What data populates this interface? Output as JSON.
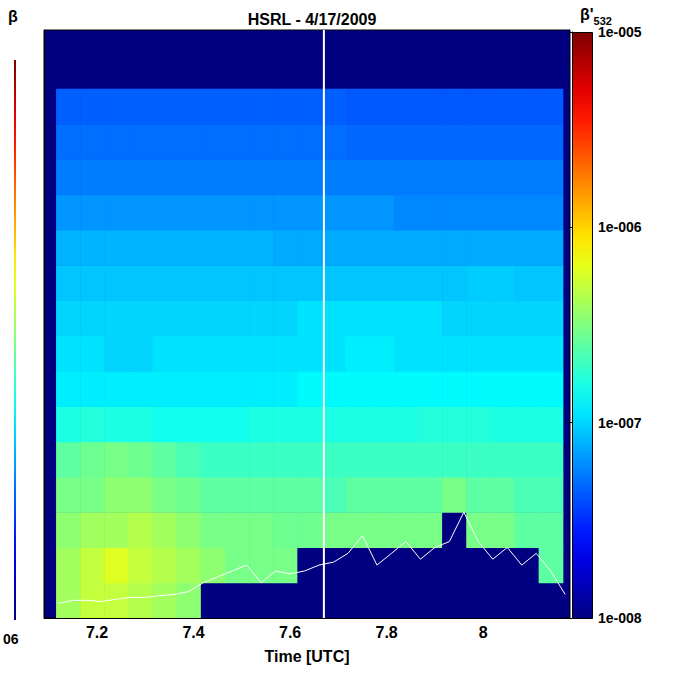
{
  "chart_data": {
    "type": "heatmap",
    "title": "HSRL - 4/17/2009",
    "x_label": "Time [UTC]",
    "xlim": [
      7.09,
      8.18
    ],
    "xticks": [
      7.2,
      7.4,
      7.6,
      7.8,
      8
    ],
    "ylim": [
      0,
      100
    ],
    "yticks": [],
    "tick_labels": "x",
    "grid": false,
    "x": [
      7.14,
      7.19,
      7.24,
      7.29,
      7.34,
      7.39,
      7.44,
      7.49,
      7.54,
      7.59,
      7.64,
      7.69,
      7.74,
      7.79,
      7.84,
      7.89,
      7.94,
      7.99,
      8.04,
      8.09,
      8.14
    ],
    "y": [
      3,
      9,
      15,
      21,
      27,
      33,
      39,
      45,
      51,
      57,
      63,
      69,
      75,
      81,
      87
    ],
    "cells": [
      [
        4e-07,
        5e-07,
        5e-07,
        4.5e-07,
        4e-07,
        3.5e-07,
        1e-08,
        1e-08,
        1e-08,
        1e-08,
        1e-08,
        1e-08,
        1e-08,
        1e-08,
        1e-08,
        1e-08,
        1e-08,
        1e-08,
        1e-08,
        1e-08,
        1e-08
      ],
      [
        4e-07,
        5e-07,
        6e-07,
        5e-07,
        4.5e-07,
        4e-07,
        3.5e-07,
        3e-07,
        3e-07,
        3e-07,
        1e-08,
        1e-08,
        1e-08,
        1e-08,
        1e-08,
        1e-08,
        1e-08,
        1e-08,
        1e-08,
        1e-08,
        2.5e-07
      ],
      [
        3.5e-07,
        4e-07,
        4e-07,
        4.5e-07,
        4e-07,
        3.5e-07,
        3e-07,
        3e-07,
        3e-07,
        2.8e-07,
        2.8e-07,
        3e-07,
        3e-07,
        3e-07,
        3e-07,
        3e-07,
        1e-08,
        3e-07,
        3e-07,
        2.5e-07,
        2.5e-07
      ],
      [
        3e-07,
        3e-07,
        3.5e-07,
        3.5e-07,
        3e-07,
        2.8e-07,
        2.5e-07,
        2.5e-07,
        2.5e-07,
        2.5e-07,
        2.5e-07,
        2.2e-07,
        2.5e-07,
        2.5e-07,
        2.5e-07,
        2.5e-07,
        3e-07,
        2.5e-07,
        2.5e-07,
        2.2e-07,
        2.2e-07
      ],
      [
        2.5e-07,
        2.8e-07,
        3e-07,
        2.8e-07,
        2.5e-07,
        2.2e-07,
        2e-07,
        2e-07,
        2e-07,
        2e-07,
        2e-07,
        2e-07,
        2e-07,
        2e-07,
        2e-07,
        2e-07,
        2e-07,
        2e-07,
        2e-07,
        2e-07,
        2e-07
      ],
      [
        1.6e-07,
        1.7e-07,
        1.6e-07,
        1.6e-07,
        1.5e-07,
        1.5e-07,
        1.5e-07,
        1.5e-07,
        1.6e-07,
        1.6e-07,
        1.6e-07,
        1.6e-07,
        1.6e-07,
        1.6e-07,
        1.6e-07,
        1.7e-07,
        1.7e-07,
        1.7e-07,
        1.6e-07,
        1.6e-07,
        1.6e-07
      ],
      [
        1.2e-07,
        1.2e-07,
        1.2e-07,
        1.2e-07,
        1.2e-07,
        1.2e-07,
        1.2e-07,
        1.2e-07,
        1.2e-07,
        1.2e-07,
        1.3e-07,
        1.3e-07,
        1.3e-07,
        1.3e-07,
        1.3e-07,
        1.3e-07,
        1.3e-07,
        1.3e-07,
        1.3e-07,
        1.3e-07,
        1.3e-07
      ],
      [
        1.1e-07,
        1.1e-07,
        1e-07,
        1e-07,
        1.1e-07,
        1.1e-07,
        1.1e-07,
        1.1e-07,
        1.1e-07,
        1.1e-07,
        1.1e-07,
        1.1e-07,
        1.2e-07,
        1.2e-07,
        1.1e-07,
        1.1e-07,
        1.1e-07,
        1.1e-07,
        1.1e-07,
        1.1e-07,
        1.1e-07
      ],
      [
        1e-07,
        1e-07,
        1e-07,
        1e-07,
        1e-07,
        1e-07,
        1e-07,
        1e-07,
        1e-07,
        1e-07,
        1.1e-07,
        1.1e-07,
        1.1e-07,
        1.1e-07,
        1.1e-07,
        1.1e-07,
        1e-07,
        1e-07,
        1e-07,
        1e-07,
        1e-07
      ],
      [
        9e-08,
        9e-08,
        9e-08,
        9e-08,
        9e-08,
        9e-08,
        9e-08,
        9e-08,
        9e-08,
        9e-08,
        9e-08,
        9e-08,
        9e-08,
        9e-08,
        9e-08,
        9e-08,
        9e-08,
        9.5e-08,
        9.5e-08,
        9e-08,
        9e-08
      ],
      [
        8e-08,
        8e-08,
        8e-08,
        8e-08,
        8e-08,
        8e-08,
        8e-08,
        8e-08,
        8e-08,
        7.5e-08,
        7.5e-08,
        7.5e-08,
        7.5e-08,
        7.5e-08,
        7.5e-08,
        7.5e-08,
        7.5e-08,
        7.5e-08,
        7.5e-08,
        7.5e-08,
        7.5e-08
      ],
      [
        6.5e-08,
        6.5e-08,
        6.5e-08,
        6.5e-08,
        6.5e-08,
        6.5e-08,
        6.5e-08,
        6.5e-08,
        6.5e-08,
        6.5e-08,
        6.5e-08,
        6.5e-08,
        6.5e-08,
        6.5e-08,
        6e-08,
        6e-08,
        6e-08,
        6e-08,
        6e-08,
        6e-08,
        6e-08
      ],
      [
        5.5e-08,
        5.5e-08,
        5.5e-08,
        5.5e-08,
        5.5e-08,
        5.5e-08,
        5.5e-08,
        5.5e-08,
        5.5e-08,
        5.5e-08,
        5.5e-08,
        5.5e-08,
        5.5e-08,
        5.5e-08,
        5.5e-08,
        5.5e-08,
        5.5e-08,
        5.5e-08,
        5.5e-08,
        5.5e-08,
        5.5e-08
      ],
      [
        5e-08,
        5e-08,
        5e-08,
        5e-08,
        5e-08,
        5e-08,
        5e-08,
        5e-08,
        5e-08,
        5e-08,
        5e-08,
        5e-08,
        4.8e-08,
        4.8e-08,
        4.8e-08,
        4.8e-08,
        4.8e-08,
        4.8e-08,
        4.8e-08,
        4.8e-08,
        4.8e-08
      ],
      [
        4.5e-08,
        4.5e-08,
        4.5e-08,
        4.5e-08,
        4.5e-08,
        4.5e-08,
        4.5e-08,
        4.5e-08,
        4.5e-08,
        4.5e-08,
        4.5e-08,
        4.5e-08,
        4.3e-08,
        4.3e-08,
        4.3e-08,
        4.3e-08,
        4.3e-08,
        4.3e-08,
        4.3e-08,
        4.3e-08,
        4.3e-08
      ]
    ],
    "colorbar": {
      "label": {
        "text": "β'",
        "subscript": "532"
      },
      "range": [
        1e-08,
        1e-05
      ],
      "log": true,
      "ticks": [
        {
          "value": 1e-08,
          "label": "1e-008"
        },
        {
          "value": 1e-07,
          "label": "1e-007"
        },
        {
          "value": 1e-06,
          "label": "1e-006"
        },
        {
          "value": 1e-05,
          "label": "1e-005"
        }
      ]
    },
    "vertical_line": {
      "x": 7.67,
      "color": "#ffffff"
    },
    "ground_line": {
      "color": "#ffffff",
      "x": [
        7.12,
        7.15,
        7.18,
        7.21,
        7.24,
        7.27,
        7.3,
        7.33,
        7.36,
        7.39,
        7.42,
        7.45,
        7.48,
        7.51,
        7.54,
        7.57,
        7.6,
        7.63,
        7.66,
        7.69,
        7.72,
        7.75,
        7.78,
        7.81,
        7.84,
        7.87,
        7.9,
        7.93,
        7.96,
        7.99,
        8.02,
        8.05,
        8.08,
        8.11,
        8.14,
        8.17
      ],
      "y": [
        2.5,
        3,
        3,
        2.8,
        3.2,
        3.5,
        3.5,
        3.8,
        4,
        4.5,
        6,
        7,
        8,
        9,
        6,
        8,
        7.5,
        8,
        9,
        9.5,
        11,
        14,
        9,
        11,
        13,
        10,
        12,
        13,
        18,
        13,
        10,
        12,
        9,
        11,
        8,
        4
      ]
    },
    "left_colorbar": {
      "label": "β",
      "tick_labels": [
        "06"
      ]
    }
  }
}
